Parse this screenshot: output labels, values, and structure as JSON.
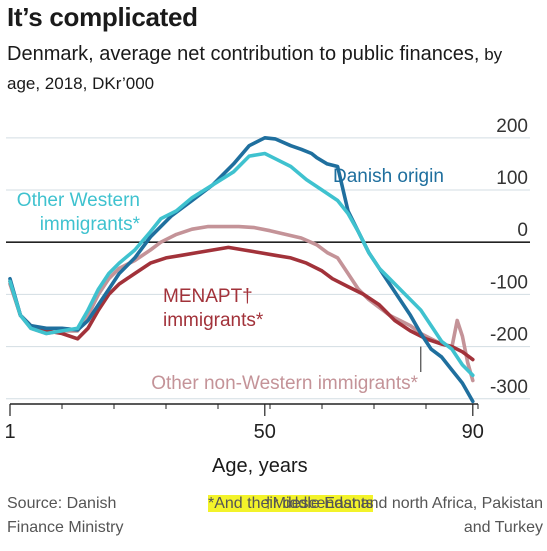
{
  "title": "It’s complicated",
  "subtitle_main": "Denmark, average net contribution to public finances,",
  "subtitle_small": " by age, 2018, DKr’000",
  "xlabel": "Age, years",
  "source": "Source: Danish Finance Ministry",
  "note_descendants": "*And their descendants",
  "note_menapt": "†Middle East and north Africa, Pakistan and Turkey",
  "chart_data": {
    "type": "line",
    "title": "It’s complicated",
    "subtitle": "Denmark, average net contribution to public finances, by age, 2018, DKr’000",
    "xlabel": "Age, years",
    "ylabel": "",
    "xlim": [
      1,
      91
    ],
    "ylim": [
      -310,
      215
    ],
    "x_ticks": [
      1,
      50,
      90
    ],
    "y_ticks": [
      200,
      100,
      0,
      -100,
      -200,
      -300
    ],
    "grid": true,
    "series": [
      {
        "name": "Danish origin",
        "color": "#1f6f9e",
        "label_lines": [
          "Danish origin"
        ],
        "points": [
          [
            1,
            -70
          ],
          [
            3,
            -140
          ],
          [
            5,
            -160
          ],
          [
            8,
            -165
          ],
          [
            11,
            -165
          ],
          [
            14,
            -168
          ],
          [
            16,
            -150
          ],
          [
            18,
            -120
          ],
          [
            20,
            -90
          ],
          [
            22,
            -60
          ],
          [
            25,
            -30
          ],
          [
            28,
            10
          ],
          [
            32,
            50
          ],
          [
            36,
            80
          ],
          [
            40,
            110
          ],
          [
            44,
            150
          ],
          [
            47,
            185
          ],
          [
            50,
            200
          ],
          [
            52,
            198
          ],
          [
            55,
            185
          ],
          [
            57,
            178
          ],
          [
            59,
            170
          ],
          [
            60,
            162
          ],
          [
            62,
            150
          ],
          [
            64,
            145
          ],
          [
            66,
            60
          ],
          [
            68,
            20
          ],
          [
            70,
            -20
          ],
          [
            72,
            -50
          ],
          [
            74,
            -80
          ],
          [
            76,
            -110
          ],
          [
            78,
            -140
          ],
          [
            80,
            -175
          ],
          [
            82,
            -205
          ],
          [
            84,
            -220
          ],
          [
            86,
            -245
          ],
          [
            88,
            -270
          ],
          [
            90,
            -305
          ]
        ]
      },
      {
        "name": "Other Western immigrants*",
        "color": "#3fc2cf",
        "label_lines": [
          "Other Western",
          "immigrants*"
        ],
        "points": [
          [
            1,
            -75
          ],
          [
            3,
            -140
          ],
          [
            5,
            -165
          ],
          [
            8,
            -175
          ],
          [
            11,
            -170
          ],
          [
            14,
            -165
          ],
          [
            16,
            -130
          ],
          [
            18,
            -90
          ],
          [
            20,
            -60
          ],
          [
            22,
            -40
          ],
          [
            25,
            -15
          ],
          [
            28,
            20
          ],
          [
            30,
            45
          ],
          [
            33,
            60
          ],
          [
            36,
            85
          ],
          [
            40,
            110
          ],
          [
            44,
            135
          ],
          [
            47,
            165
          ],
          [
            50,
            170
          ],
          [
            52,
            160
          ],
          [
            55,
            145
          ],
          [
            58,
            120
          ],
          [
            61,
            100
          ],
          [
            64,
            80
          ],
          [
            66,
            55
          ],
          [
            68,
            20
          ],
          [
            70,
            -20
          ],
          [
            72,
            -50
          ],
          [
            74,
            -70
          ],
          [
            76,
            -90
          ],
          [
            78,
            -110
          ],
          [
            80,
            -130
          ],
          [
            82,
            -160
          ],
          [
            84,
            -190
          ],
          [
            86,
            -205
          ],
          [
            88,
            -235
          ],
          [
            90,
            -255
          ]
        ]
      },
      {
        "name": "Other non-Western immigrants*",
        "color": "#c49398",
        "label_lines": [
          "Other non-Western immigrants*"
        ],
        "points": [
          [
            1,
            -80
          ],
          [
            3,
            -140
          ],
          [
            5,
            -165
          ],
          [
            8,
            -175
          ],
          [
            11,
            -170
          ],
          [
            14,
            -170
          ],
          [
            16,
            -140
          ],
          [
            18,
            -100
          ],
          [
            20,
            -70
          ],
          [
            22,
            -50
          ],
          [
            25,
            -35
          ],
          [
            28,
            -15
          ],
          [
            30,
            0
          ],
          [
            33,
            15
          ],
          [
            36,
            25
          ],
          [
            39,
            30
          ],
          [
            42,
            30
          ],
          [
            45,
            30
          ],
          [
            48,
            28
          ],
          [
            51,
            22
          ],
          [
            54,
            15
          ],
          [
            57,
            8
          ],
          [
            60,
            -5
          ],
          [
            62,
            -20
          ],
          [
            64,
            -30
          ],
          [
            66,
            -60
          ],
          [
            68,
            -90
          ],
          [
            70,
            -110
          ],
          [
            72,
            -125
          ],
          [
            74,
            -140
          ],
          [
            76,
            -150
          ],
          [
            78,
            -160
          ],
          [
            80,
            -175
          ],
          [
            82,
            -185
          ],
          [
            84,
            -195
          ],
          [
            86,
            -200
          ],
          [
            87,
            -150
          ],
          [
            88,
            -180
          ],
          [
            89,
            -230
          ],
          [
            90,
            -265
          ]
        ]
      },
      {
        "name": "MENAPT† immigrants*",
        "color": "#a2323a",
        "label_lines": [
          "MENAPT†",
          "immigrants*"
        ],
        "points": [
          [
            1,
            -75
          ],
          [
            3,
            -140
          ],
          [
            5,
            -160
          ],
          [
            8,
            -170
          ],
          [
            11,
            -175
          ],
          [
            14,
            -185
          ],
          [
            16,
            -165
          ],
          [
            18,
            -130
          ],
          [
            20,
            -100
          ],
          [
            22,
            -80
          ],
          [
            25,
            -60
          ],
          [
            28,
            -40
          ],
          [
            31,
            -30
          ],
          [
            34,
            -25
          ],
          [
            37,
            -20
          ],
          [
            40,
            -15
          ],
          [
            43,
            -10
          ],
          [
            46,
            -15
          ],
          [
            49,
            -20
          ],
          [
            52,
            -25
          ],
          [
            55,
            -30
          ],
          [
            58,
            -40
          ],
          [
            61,
            -55
          ],
          [
            63,
            -70
          ],
          [
            66,
            -85
          ],
          [
            69,
            -100
          ],
          [
            72,
            -120
          ],
          [
            75,
            -150
          ],
          [
            78,
            -170
          ],
          [
            81,
            -185
          ],
          [
            84,
            -195
          ],
          [
            86,
            -200
          ],
          [
            88,
            -210
          ],
          [
            90,
            -225
          ]
        ]
      }
    ],
    "annotations": [
      "Danish origin",
      "Other Western immigrants*",
      "MENAPT† immigrants*",
      "Other non-Western immigrants*"
    ]
  }
}
